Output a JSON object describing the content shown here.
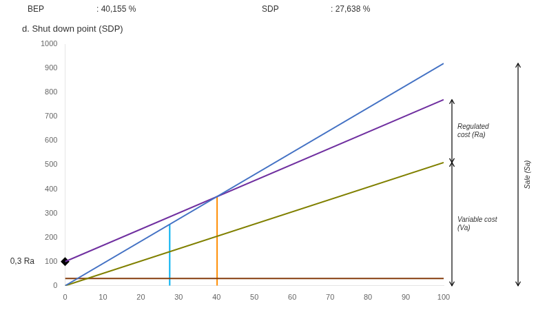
{
  "chart_data": {
    "type": "line",
    "title": [
      "BEP",
      ": 40,155 %",
      "SDP",
      ": 27,638 %"
    ],
    "subtitle": "d. Shut down point (SDP)",
    "xlim": [
      0,
      100
    ],
    "ylim": [
      0,
      1000
    ],
    "xticks": [
      0,
      10,
      20,
      30,
      40,
      50,
      60,
      70,
      80,
      90,
      100
    ],
    "yticks": [
      0,
      100,
      200,
      300,
      400,
      500,
      600,
      700,
      800,
      900,
      1000
    ],
    "grid": false,
    "series": [
      {
        "color": "#4472C4",
        "x": [
          0,
          100
        ],
        "values": [
          0,
          920
        ]
      },
      {
        "color": "#7030A0",
        "x": [
          0,
          100
        ],
        "values": [
          100,
          770
        ]
      },
      {
        "color": "#808000",
        "x": [
          0,
          100
        ],
        "values": [
          0,
          510
        ]
      },
      {
        "color": "#843C0C",
        "x": [
          0,
          100
        ],
        "values": [
          30,
          30
        ]
      },
      {
        "color": "#00B0F0",
        "x": [
          27.638,
          27.638
        ],
        "values": [
          0,
          254.2696
        ]
      },
      {
        "color": "#FF8C00",
        "x": [
          40.155,
          40.155
        ],
        "values": [
          0,
          369.426
        ]
      },
      {
        "color": "#000000",
        "x": [
          0
        ],
        "values": [
          100
        ],
        "type": "scatter",
        "marker": "diamond"
      }
    ],
    "annotations": [
      {
        "text": "0,3 Ra",
        "x": 0,
        "y": 100
      },
      {
        "text": "Regulated\ncost (Ra)",
        "y_from": 510,
        "y_to": 770
      },
      {
        "text": "Variable cost\n(Va)",
        "y_from": 0,
        "y_to": 510
      },
      {
        "text": "Sale (Sa)",
        "y_from": 0,
        "y_to": 920
      }
    ]
  }
}
